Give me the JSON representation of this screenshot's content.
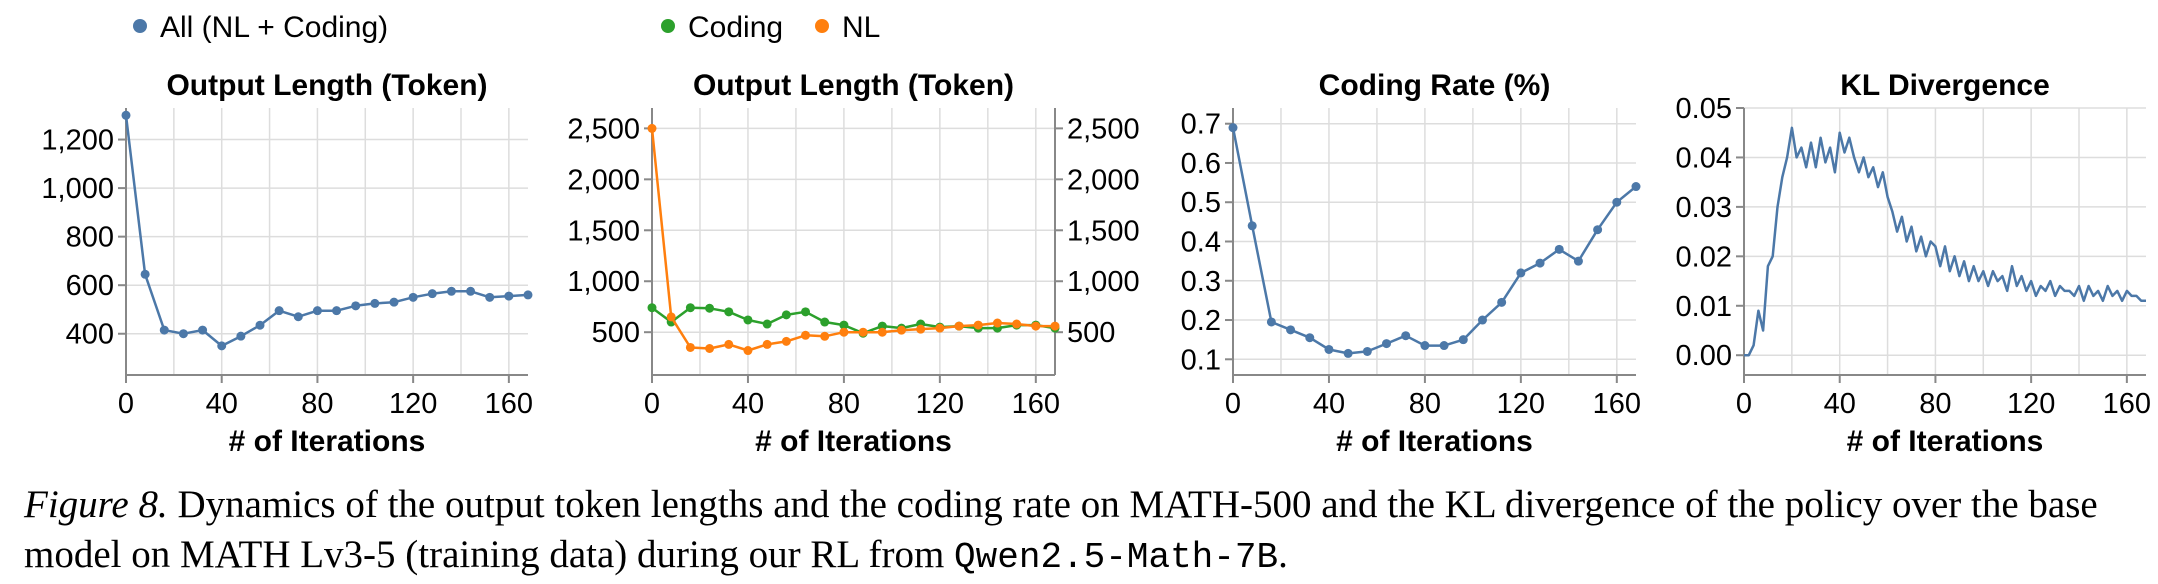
{
  "legend": [
    {
      "label": "All (NL + Coding)",
      "color": "#4c78a8"
    },
    {
      "label": "Coding",
      "color": "#2ca02c"
    },
    {
      "label": "NL",
      "color": "#ff7f0e"
    }
  ],
  "xlabel": "# of Iterations",
  "chart_data": [
    {
      "type": "line",
      "title": "Output Length (Token)",
      "xlabel": "# of Iterations",
      "ylabel": "",
      "xlim": [
        0,
        168
      ],
      "ylim": [
        230,
        1330
      ],
      "xticks": [
        0,
        40,
        80,
        120,
        160
      ],
      "yticks": [
        400,
        600,
        800,
        1000,
        1200
      ],
      "ytick_labels": [
        "400",
        "600",
        "800",
        "1,000",
        "1,200"
      ],
      "grid": true,
      "legend_position": "top-left",
      "series": [
        {
          "name": "All (NL + Coding)",
          "color": "#4c78a8",
          "markers": true,
          "x": [
            0,
            8,
            16,
            24,
            32,
            40,
            48,
            56,
            64,
            72,
            80,
            88,
            96,
            104,
            112,
            120,
            128,
            136,
            144,
            152,
            160,
            168
          ],
          "y": [
            1300,
            645,
            415,
            400,
            415,
            350,
            390,
            435,
            495,
            470,
            495,
            495,
            515,
            525,
            530,
            550,
            565,
            575,
            575,
            550,
            555,
            560
          ]
        }
      ]
    },
    {
      "type": "line",
      "title": "Output Length (Token)",
      "xlabel": "# of Iterations",
      "ylabel": "",
      "xlim": [
        0,
        168
      ],
      "ylim": [
        80,
        2700
      ],
      "xticks": [
        0,
        40,
        80,
        120,
        160
      ],
      "yticks": [
        500,
        1000,
        1500,
        2000,
        2500
      ],
      "ytick_labels": [
        "500",
        "1,000",
        "1,500",
        "2,000",
        "2,500"
      ],
      "right_axis": true,
      "grid": true,
      "legend_position": "top",
      "series": [
        {
          "name": "Coding",
          "color": "#2ca02c",
          "markers": true,
          "x": [
            0,
            8,
            16,
            24,
            32,
            40,
            48,
            56,
            64,
            72,
            80,
            88,
            96,
            104,
            112,
            120,
            128,
            136,
            144,
            152,
            160,
            168
          ],
          "y": [
            740,
            600,
            740,
            735,
            700,
            620,
            580,
            670,
            700,
            600,
            570,
            490,
            560,
            540,
            580,
            550,
            560,
            540,
            540,
            570,
            570,
            540
          ]
        },
        {
          "name": "NL",
          "color": "#ff7f0e",
          "markers": true,
          "x": [
            0,
            8,
            16,
            24,
            32,
            40,
            48,
            56,
            64,
            72,
            80,
            88,
            96,
            104,
            112,
            120,
            128,
            136,
            144,
            152,
            160,
            168
          ],
          "y": [
            2500,
            650,
            350,
            340,
            380,
            320,
            380,
            410,
            470,
            460,
            500,
            500,
            500,
            520,
            530,
            540,
            560,
            570,
            590,
            580,
            560,
            560
          ]
        }
      ]
    },
    {
      "type": "line",
      "title": "Coding Rate (%)",
      "xlabel": "# of Iterations",
      "ylabel": "",
      "xlim": [
        0,
        168
      ],
      "ylim": [
        0.06,
        0.74
      ],
      "xticks": [
        0,
        40,
        80,
        120,
        160
      ],
      "yticks": [
        0.1,
        0.2,
        0.3,
        0.4,
        0.5,
        0.6,
        0.7
      ],
      "ytick_labels": [
        "0.1",
        "0.2",
        "0.3",
        "0.4",
        "0.5",
        "0.6",
        "0.7"
      ],
      "grid": true,
      "series": [
        {
          "name": "",
          "color": "#4c78a8",
          "markers": true,
          "x": [
            0,
            8,
            16,
            24,
            32,
            40,
            48,
            56,
            64,
            72,
            80,
            88,
            96,
            104,
            112,
            120,
            128,
            136,
            144,
            152,
            160,
            168
          ],
          "y": [
            0.69,
            0.44,
            0.195,
            0.175,
            0.155,
            0.125,
            0.115,
            0.12,
            0.14,
            0.16,
            0.135,
            0.135,
            0.15,
            0.2,
            0.245,
            0.32,
            0.345,
            0.38,
            0.35,
            0.43,
            0.5,
            0.54
          ]
        }
      ]
    },
    {
      "type": "line",
      "title": "KL Divergence",
      "xlabel": "# of Iterations",
      "ylabel": "",
      "xlim": [
        0,
        168
      ],
      "ylim": [
        -0.004,
        0.05
      ],
      "xticks": [
        0,
        40,
        80,
        120,
        160
      ],
      "yticks": [
        0.0,
        0.01,
        0.02,
        0.03,
        0.04,
        0.05
      ],
      "ytick_labels": [
        "0.00",
        "0.01",
        "0.02",
        "0.03",
        "0.04",
        "0.05"
      ],
      "grid": true,
      "series": [
        {
          "name": "",
          "color": "#4c78a8",
          "markers": false,
          "x": [
            0,
            2,
            4,
            6,
            8,
            10,
            12,
            14,
            16,
            18,
            20,
            22,
            24,
            26,
            28,
            30,
            32,
            34,
            36,
            38,
            40,
            42,
            44,
            46,
            48,
            50,
            52,
            54,
            56,
            58,
            60,
            62,
            64,
            66,
            68,
            70,
            72,
            74,
            76,
            78,
            80,
            82,
            84,
            86,
            88,
            90,
            92,
            94,
            96,
            98,
            100,
            102,
            104,
            106,
            108,
            110,
            112,
            114,
            116,
            118,
            120,
            122,
            124,
            126,
            128,
            130,
            132,
            134,
            136,
            138,
            140,
            142,
            144,
            146,
            148,
            150,
            152,
            154,
            156,
            158,
            160,
            162,
            164,
            166,
            168
          ],
          "y": [
            0.0,
            0.0,
            0.002,
            0.009,
            0.005,
            0.018,
            0.02,
            0.03,
            0.036,
            0.04,
            0.046,
            0.04,
            0.042,
            0.038,
            0.043,
            0.038,
            0.044,
            0.039,
            0.042,
            0.037,
            0.045,
            0.041,
            0.044,
            0.04,
            0.037,
            0.04,
            0.036,
            0.038,
            0.034,
            0.037,
            0.032,
            0.029,
            0.025,
            0.028,
            0.023,
            0.026,
            0.021,
            0.024,
            0.02,
            0.023,
            0.022,
            0.018,
            0.022,
            0.017,
            0.02,
            0.016,
            0.019,
            0.015,
            0.018,
            0.015,
            0.017,
            0.014,
            0.017,
            0.015,
            0.016,
            0.013,
            0.018,
            0.014,
            0.016,
            0.013,
            0.015,
            0.012,
            0.014,
            0.013,
            0.015,
            0.012,
            0.014,
            0.013,
            0.013,
            0.012,
            0.014,
            0.011,
            0.014,
            0.012,
            0.013,
            0.011,
            0.014,
            0.012,
            0.013,
            0.011,
            0.013,
            0.012,
            0.012,
            0.011,
            0.011
          ]
        }
      ]
    }
  ],
  "caption": {
    "label": "Figure 8.",
    "text": " Dynamics of the output token lengths and the coding rate on MATH-500 and the KL divergence of the policy over the base model on MATH Lv3-5 (training data) during our RL from ",
    "model": "Qwen2.5-Math-7B",
    "end": "."
  }
}
